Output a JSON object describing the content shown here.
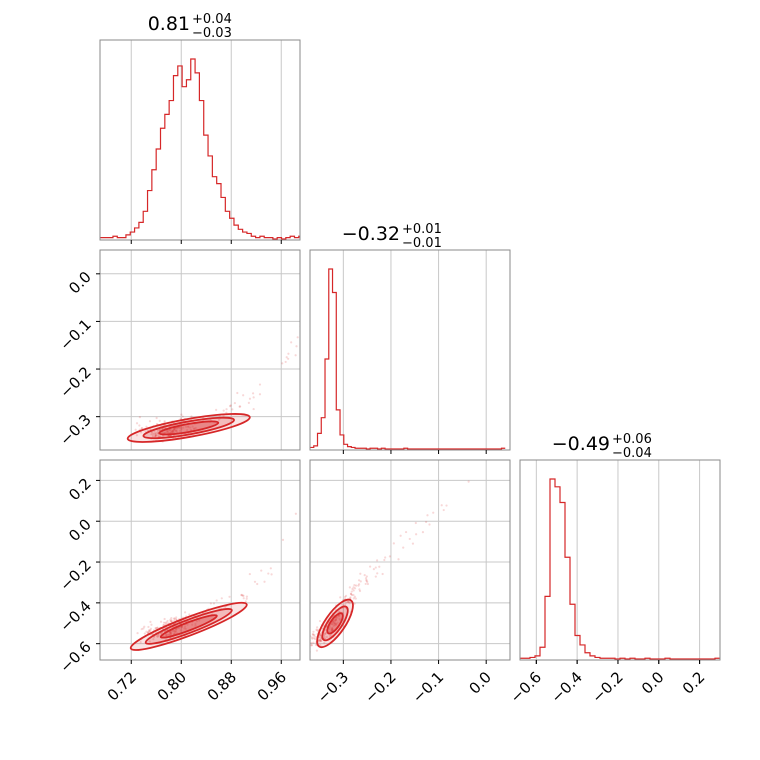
{
  "chart_data": {
    "type": "corner",
    "color": "#d62728",
    "parameters": [
      {
        "median": "0.81",
        "plus": "+0.04",
        "minus": "−0.03",
        "range": [
          0.67,
          0.99
        ],
        "ticks": [
          0.72,
          0.8,
          0.88,
          0.96
        ],
        "tick_labels": [
          "0.72",
          "0.80",
          "0.88",
          "0.96"
        ]
      },
      {
        "median": "−0.32",
        "plus": "+0.01",
        "minus": "−0.01",
        "range": [
          -0.37,
          0.05
        ],
        "ticks": [
          -0.3,
          -0.2,
          -0.1,
          0.0
        ],
        "tick_labels": [
          "−0.3",
          "−0.2",
          "−0.1",
          "0.0"
        ]
      },
      {
        "median": "−0.49",
        "plus": "+0.06",
        "minus": "−0.04",
        "range": [
          -0.68,
          0.3
        ],
        "ticks": [
          -0.6,
          -0.4,
          -0.2,
          0.0,
          0.2
        ],
        "tick_labels": [
          "−0.6",
          "−0.4",
          "−0.2",
          "0.0",
          "0.2"
        ]
      }
    ],
    "histograms": [
      {
        "param": 0,
        "bin_edges": [
          0.67,
          0.995
        ],
        "counts": [
          1,
          1,
          1,
          2,
          1,
          1,
          3,
          5,
          8,
          12,
          20,
          35,
          50,
          65,
          80,
          90,
          100,
          118,
          125,
          110,
          115,
          130,
          120,
          100,
          75,
          60,
          45,
          40,
          30,
          20,
          15,
          10,
          7,
          5,
          4,
          2,
          1,
          2,
          1,
          1,
          0,
          1,
          0,
          1,
          2,
          1,
          2
        ]
      },
      {
        "param": 1,
        "bin_edges": [
          -0.37,
          0.04
        ],
        "counts": [
          2,
          4,
          20,
          40,
          115,
          230,
          200,
          50,
          18,
          6,
          3,
          2,
          1,
          1,
          1,
          0,
          1,
          1,
          0,
          1,
          0,
          0,
          0,
          0,
          0,
          1,
          0,
          0,
          0,
          0,
          0,
          0,
          0,
          0,
          0,
          0,
          0,
          0,
          0,
          0,
          0,
          0,
          0,
          0,
          0,
          0,
          0,
          0,
          0,
          0,
          0,
          1
        ]
      },
      {
        "param": 2,
        "bin_edges": [
          -0.68,
          0.3
        ],
        "counts": [
          1,
          1,
          2,
          4,
          15,
          80,
          230,
          220,
          200,
          130,
          70,
          30,
          18,
          8,
          4,
          2,
          1,
          1,
          1,
          0,
          1,
          0,
          1,
          0,
          0,
          1,
          0,
          0,
          0,
          1,
          0,
          0,
          0,
          0,
          0,
          0,
          0,
          0,
          0,
          1
        ]
      }
    ],
    "joint": [
      {
        "x": 0,
        "y": 1,
        "trend": [
          [
            0.72,
            -0.332
          ],
          [
            0.78,
            -0.33
          ],
          [
            0.84,
            -0.316
          ],
          [
            0.88,
            -0.29
          ],
          [
            0.92,
            -0.25
          ],
          [
            0.96,
            -0.2
          ],
          [
            0.99,
            -0.13
          ]
        ]
      },
      {
        "x": 0,
        "y": 2,
        "trend": [
          [
            0.72,
            -0.57
          ],
          [
            0.78,
            -0.53
          ],
          [
            0.84,
            -0.46
          ],
          [
            0.88,
            -0.4
          ],
          [
            0.92,
            -0.31
          ],
          [
            0.96,
            -0.15
          ],
          [
            0.99,
            0.1
          ]
        ]
      },
      {
        "x": 1,
        "y": 2,
        "trend": [
          [
            -0.37,
            -0.6
          ],
          [
            -0.33,
            -0.53
          ],
          [
            -0.3,
            -0.42
          ],
          [
            -0.2,
            -0.15
          ],
          [
            -0.1,
            0.05
          ],
          [
            0.0,
            0.25
          ]
        ]
      }
    ]
  }
}
